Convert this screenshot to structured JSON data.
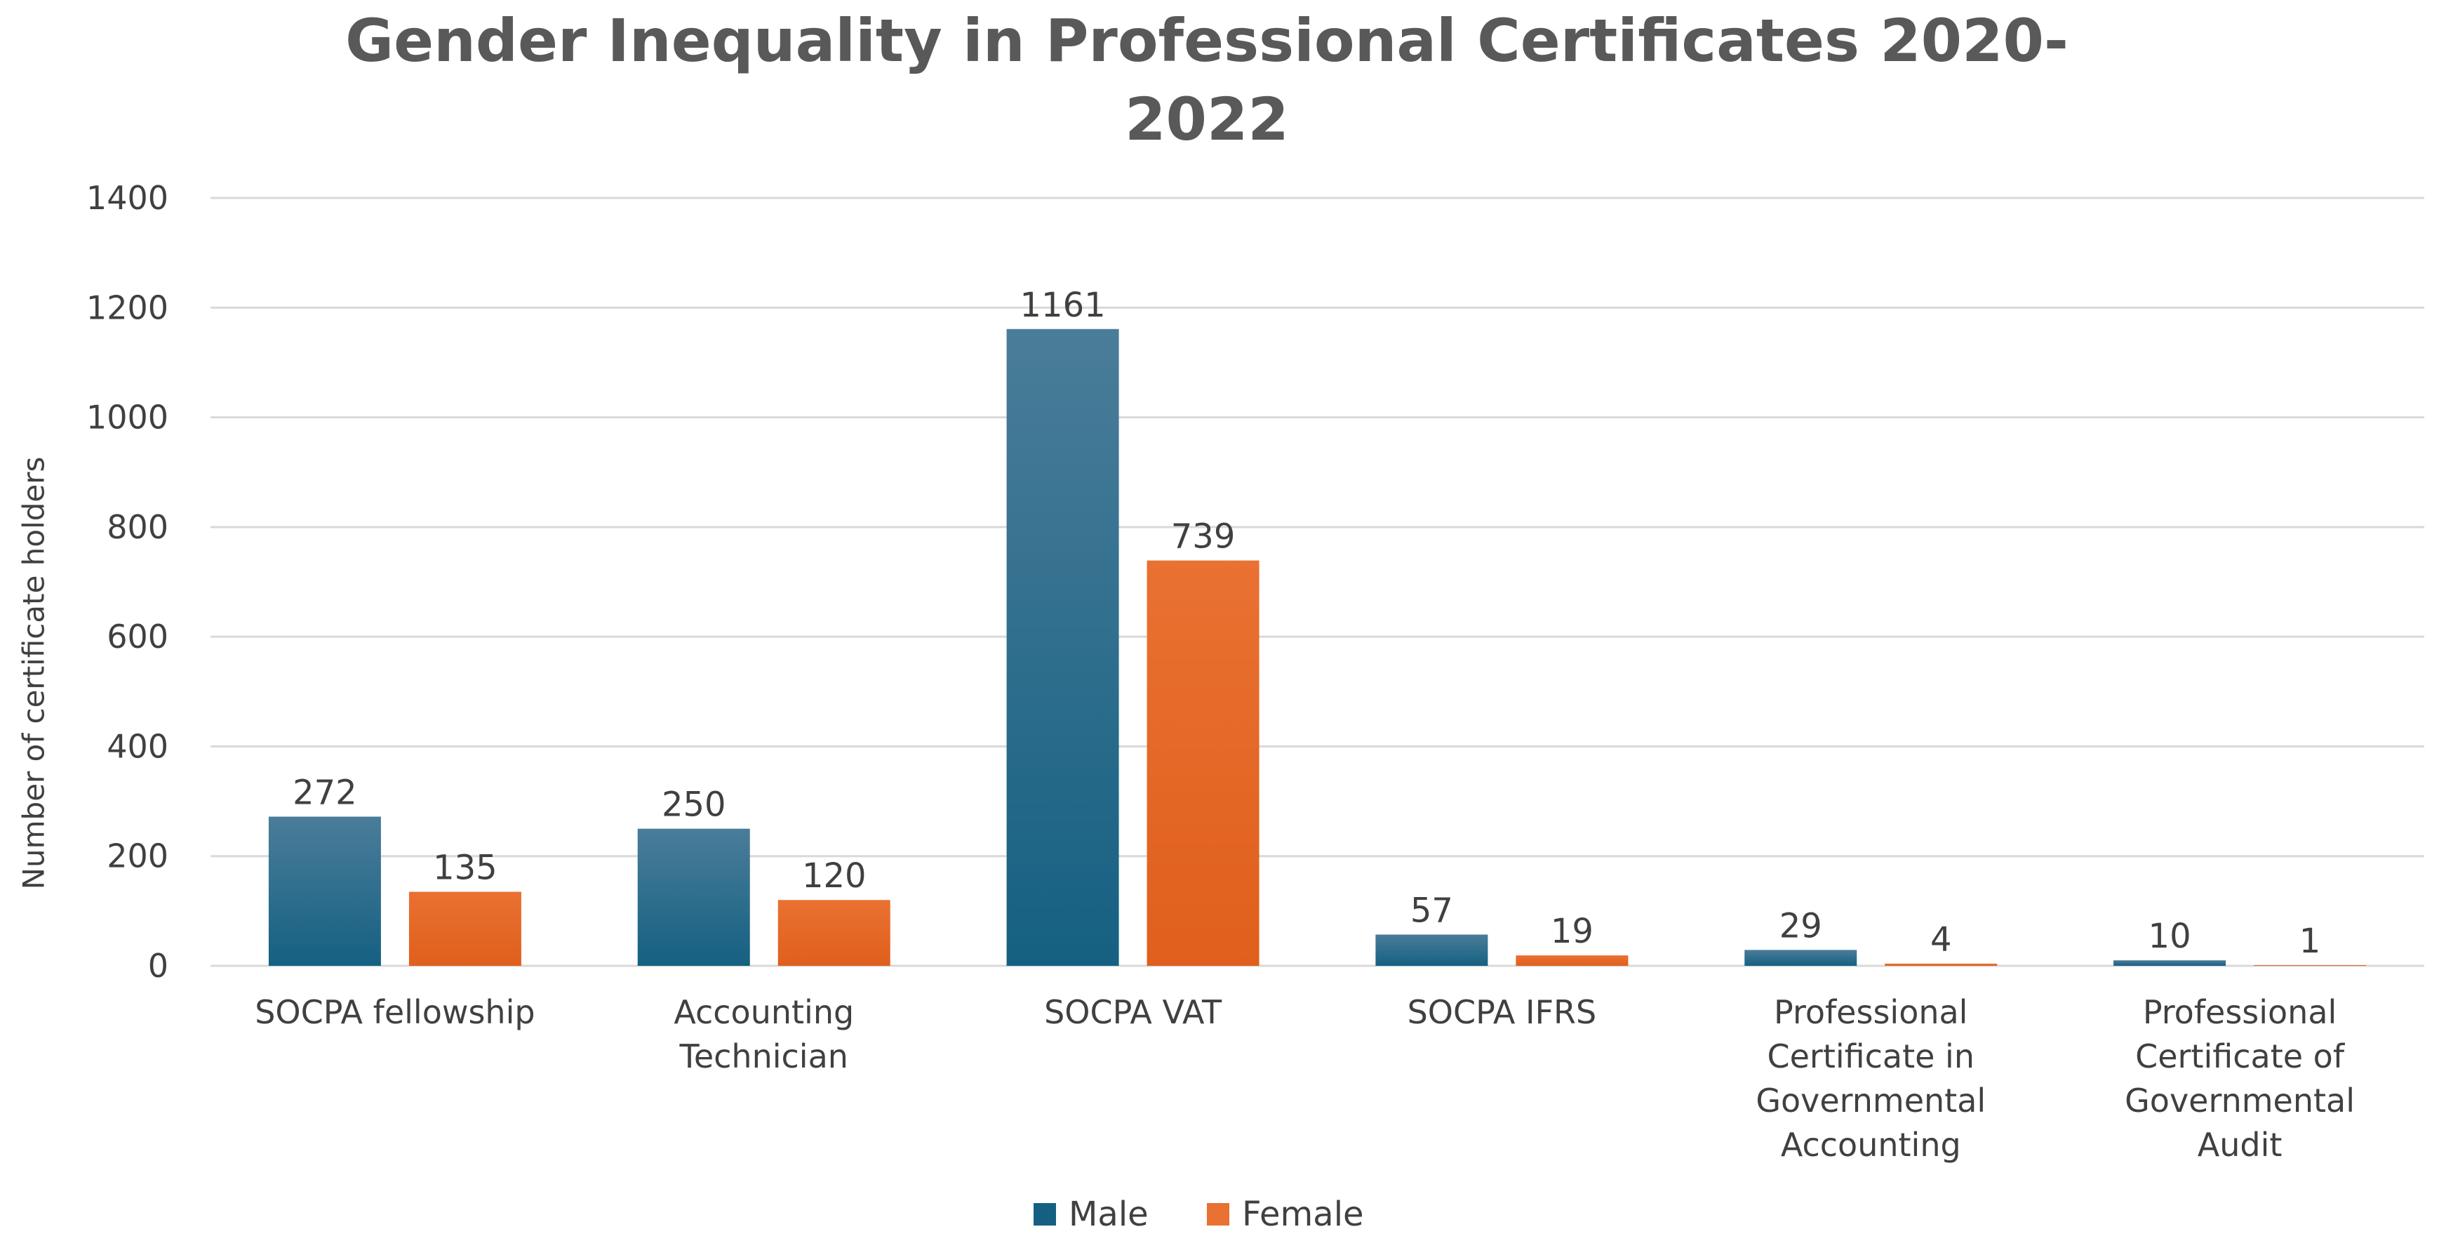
{
  "colors": {
    "male": "#156082",
    "male_light": "#4a7d99",
    "female": "#e97132",
    "female_dark": "#e05f1c"
  },
  "chart_data": {
    "type": "bar",
    "title": "Gender Inequality in Professional Certificates 2020-2022",
    "title_lines": [
      "Gender Inequality in Professional Certificates 2020-",
      "2022"
    ],
    "xlabel": "",
    "ylabel": "Number of certificate holders",
    "ylim": [
      0,
      1400
    ],
    "yticks": [
      0,
      200,
      400,
      600,
      800,
      1000,
      1200,
      1400
    ],
    "grid": true,
    "legend_position": "bottom",
    "categories": [
      "SOCPA fellowship",
      "Accounting Technician",
      "SOCPA VAT",
      "SOCPA IFRS",
      "Professional Certificate in Governmental Accounting",
      "Professional Certificate of Governmental Audit"
    ],
    "category_lines": [
      [
        "SOCPA fellowship"
      ],
      [
        "Accounting",
        "Technician"
      ],
      [
        "SOCPA VAT"
      ],
      [
        "SOCPA IFRS"
      ],
      [
        "Professional",
        "Certificate in",
        "Governmental",
        "Accounting"
      ],
      [
        "Professional",
        "Certificate of",
        "Governmental",
        "Audit"
      ]
    ],
    "series": [
      {
        "name": "Male",
        "values": [
          272,
          250,
          1161,
          57,
          29,
          10
        ]
      },
      {
        "name": "Female",
        "values": [
          135,
          120,
          739,
          19,
          4,
          1
        ]
      }
    ]
  }
}
